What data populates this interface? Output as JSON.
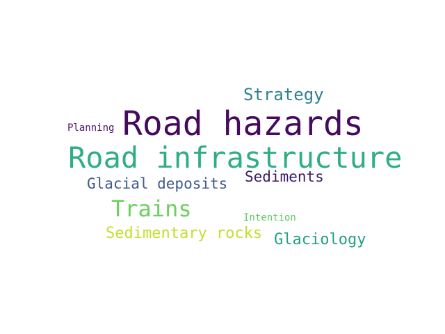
{
  "words": [
    {
      "text": "Road hazards",
      "color": "#440a5e"
    },
    {
      "text": "Road infrastructure",
      "color": "#2fae84"
    },
    {
      "text": "Strategy",
      "color": "#30808e"
    },
    {
      "text": "Planning",
      "color": "#4b1566"
    },
    {
      "text": "Glacial deposits",
      "color": "#3f5a8b"
    },
    {
      "text": "Sediments",
      "color": "#3c1b61"
    },
    {
      "text": "Trains",
      "color": "#6cd05e"
    },
    {
      "text": "Intention",
      "color": "#5ec962"
    },
    {
      "text": "Sedimentary rocks",
      "color": "#c2df2a"
    },
    {
      "text": "Glaciology",
      "color": "#21a186"
    }
  ],
  "background": "#ffffff"
}
